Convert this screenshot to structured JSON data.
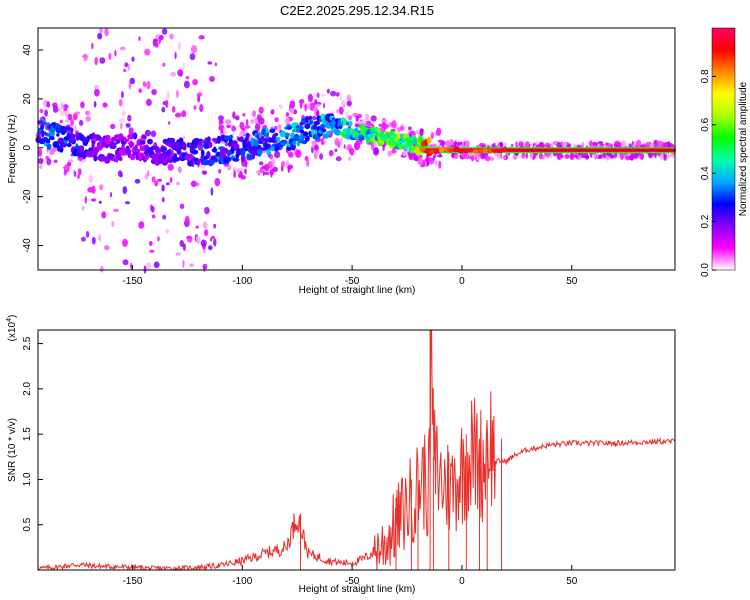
{
  "title": "C2E2.2025.295.12.34.R15",
  "chart_data": [
    {
      "type": "heatmap",
      "name": "spectrogram",
      "xlabel": "Height of straight line (km)",
      "ylabel": "Frequency (Hz)",
      "xlim": [
        -193,
        97
      ],
      "ylim": [
        -50,
        49
      ],
      "xticks": [
        "-150",
        "-100",
        "-50",
        "0",
        "50"
      ],
      "xtick_values": [
        -150,
        -100,
        -50,
        0,
        50
      ],
      "yticks": [
        "-40",
        "-20",
        "0",
        "20",
        "40"
      ],
      "ytick_values": [
        -40,
        -20,
        0,
        20,
        40
      ],
      "ridge": {
        "x": [
          -193,
          -175,
          -165,
          -150,
          -130,
          -110,
          -90,
          -75,
          -60,
          -50,
          -40,
          -30,
          -22,
          -15,
          -8,
          0,
          10,
          20,
          40,
          60,
          80,
          97
        ],
        "freq": [
          6,
          2,
          0,
          0,
          -2,
          -1,
          2,
          6,
          10,
          7,
          5,
          3,
          1,
          0,
          0,
          -1,
          -2,
          -1,
          -1,
          -1,
          -1,
          -1
        ],
        "amplitude": [
          0.35,
          0.3,
          0.2,
          0.2,
          0.25,
          0.3,
          0.35,
          0.4,
          0.42,
          0.5,
          0.6,
          0.62,
          0.65,
          0.9,
          0.92,
          0.8,
          0.82,
          0.9,
          0.95,
          0.97,
          0.98,
          0.98
        ]
      },
      "colorbar": {
        "label": "Normalized spectral amplitude",
        "range": [
          0,
          1
        ],
        "ticks": [
          "0.0",
          "0.2",
          "0.4",
          "0.6",
          "0.8"
        ],
        "tick_values": [
          0,
          0.2,
          0.4,
          0.6,
          0.8
        ],
        "colors": [
          "#ffffff",
          "#ff00ff",
          "#8800ff",
          "#0000ff",
          "#00aaff",
          "#00ffaa",
          "#00ff00",
          "#aaff00",
          "#ffff00",
          "#ff8800",
          "#ff0000",
          "#ff0066"
        ]
      }
    },
    {
      "type": "line",
      "name": "snr",
      "xlabel": "Height of straight line (km)",
      "ylabel": "SNR (10 * v/v)",
      "yscale_label": "(x10",
      "yscale_exp": "4",
      "xlim": [
        -193,
        97
      ],
      "ylim": [
        0,
        2.65
      ],
      "xticks": [
        "-150",
        "-100",
        "-50",
        "0",
        "50"
      ],
      "xtick_values": [
        -150,
        -100,
        -50,
        0,
        50
      ],
      "yticks": [
        "0.5",
        "1.0",
        "1.5",
        "2.0",
        "2.5"
      ],
      "ytick_values": [
        0.5,
        1.0,
        1.5,
        2.0,
        2.5
      ],
      "color": "#e8302a",
      "x": [
        -193,
        -185,
        -175,
        -165,
        -150,
        -140,
        -130,
        -120,
        -110,
        -100,
        -90,
        -80,
        -75,
        -70,
        -60,
        -55,
        -50,
        -45,
        -40,
        -35,
        -30,
        -25,
        -20,
        -18,
        -15,
        -14,
        -13,
        -10,
        -5,
        0,
        5,
        10,
        12,
        15,
        20,
        25,
        30,
        40,
        50,
        60,
        70,
        80,
        90,
        97
      ],
      "y": [
        0.02,
        0.03,
        0.06,
        0.04,
        0.03,
        0.02,
        0.02,
        0.03,
        0.05,
        0.1,
        0.18,
        0.25,
        0.6,
        0.18,
        0.1,
        0.08,
        0.08,
        0.12,
        0.2,
        0.3,
        0.5,
        0.7,
        0.9,
        1.05,
        0.85,
        2.65,
        1.25,
        1.0,
        0.9,
        1.1,
        1.3,
        1.15,
        1.55,
        1.2,
        1.2,
        1.28,
        1.33,
        1.38,
        1.4,
        1.4,
        1.4,
        1.41,
        1.42,
        1.42
      ],
      "spikes": [
        {
          "x": -73.5,
          "y": 0.62
        },
        {
          "x": -30,
          "y": 0.8
        },
        {
          "x": -23,
          "y": 1.0
        },
        {
          "x": -20,
          "y": 1.17
        },
        {
          "x": -14.5,
          "y": 2.65
        },
        {
          "x": -13,
          "y": 1.25
        },
        {
          "x": -6,
          "y": 1.3
        },
        {
          "x": 2,
          "y": 1.5
        },
        {
          "x": 8,
          "y": 1.45
        },
        {
          "x": 11.5,
          "y": 1.55
        },
        {
          "x": 18,
          "y": 1.45
        }
      ]
    }
  ]
}
